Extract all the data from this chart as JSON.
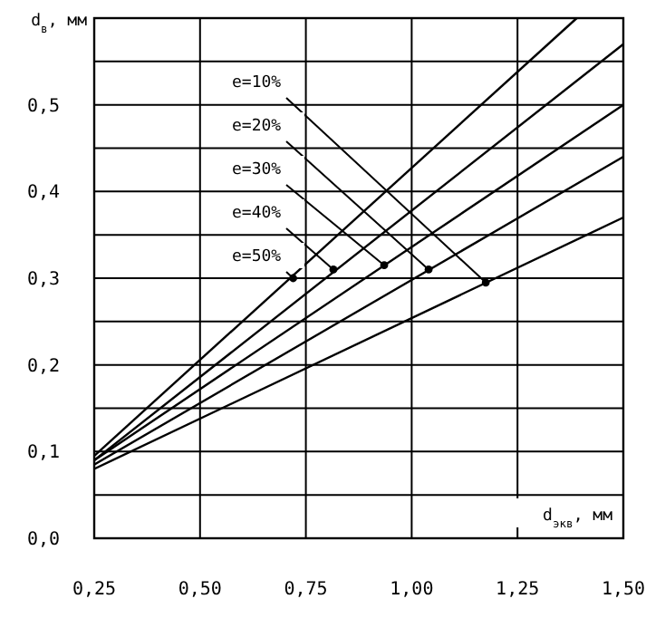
{
  "chart_data": {
    "type": "line",
    "xlabel": "d$_{экв}$, мм",
    "ylabel": "d$_{в}$, мм",
    "xlim": [
      0.25,
      1.5
    ],
    "ylim": [
      0,
      0.6
    ],
    "xticks": [
      {
        "value": 0.25,
        "label": "0,25"
      },
      {
        "value": 0.5,
        "label": "0,50"
      },
      {
        "value": 0.75,
        "label": "0,75"
      },
      {
        "value": 1,
        "label": "1,00"
      },
      {
        "value": 1.25,
        "label": "1,25"
      },
      {
        "value": 1.5,
        "label": "1,50"
      }
    ],
    "yticks": [
      {
        "value": 0,
        "label": "0,0"
      },
      {
        "value": 0.05,
        "label": null
      },
      {
        "value": 0.1,
        "label": "0,1"
      },
      {
        "value": 0.15,
        "label": null
      },
      {
        "value": 0.2,
        "label": "0,2"
      },
      {
        "value": 0.25,
        "label": null
      },
      {
        "value": 0.3,
        "label": "0,3"
      },
      {
        "value": 0.35,
        "label": null
      },
      {
        "value": 0.4,
        "label": "0,4"
      },
      {
        "value": 0.45,
        "label": null
      },
      {
        "value": 0.5,
        "label": "0,5"
      },
      {
        "value": 0.55,
        "label": null
      }
    ],
    "grid": true,
    "series": [
      {
        "color": "#000000",
        "x": [
          0.25,
          1.39
        ],
        "values": [
          0.095,
          0.6
        ]
      },
      {
        "color": "#000000",
        "x": [
          0.25,
          1.5
        ],
        "values": [
          0.09,
          0.57
        ]
      },
      {
        "color": "#000000",
        "x": [
          0.25,
          1.5
        ],
        "values": [
          0.09,
          0.5
        ]
      },
      {
        "color": "#000000",
        "x": [
          0.25,
          1.5
        ],
        "values": [
          0.085,
          0.44
        ]
      },
      {
        "color": "#000000",
        "x": [
          0.25,
          1.5
        ],
        "values": [
          0.08,
          0.37
        ]
      }
    ],
    "annotations": [
      {
        "text": "e=10%",
        "x": 1.175,
        "y": 0.295
      },
      {
        "text": "e=20%",
        "x": 1.04,
        "y": 0.31
      },
      {
        "text": "e=30%",
        "x": 0.935,
        "y": 0.315
      },
      {
        "text": "e=40%",
        "x": 0.815,
        "y": 0.31
      },
      {
        "text": "e=50%",
        "x": 0.72,
        "y": 0.3
      }
    ]
  }
}
